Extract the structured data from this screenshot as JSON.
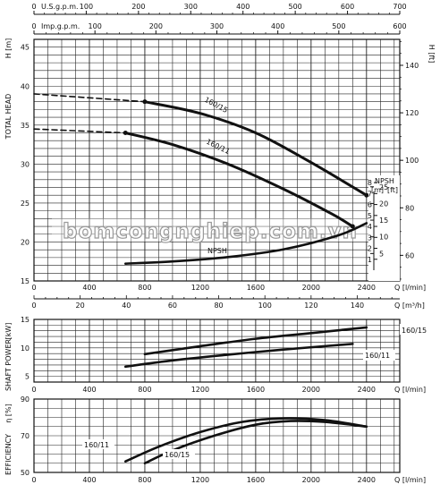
{
  "watermark": "bomcongnghiep.com.vn",
  "chart_data": [
    {
      "type": "line",
      "name": "head",
      "top_axes": [
        {
          "label": "U.S.g.p.m.",
          "ticks": [
            "0",
            "100",
            "200",
            "300",
            "400",
            "500",
            "600",
            "700"
          ],
          "max": 700
        },
        {
          "label": "Imp.g.p.m.",
          "ticks": [
            "0",
            "100",
            "200",
            "300",
            "400",
            "500",
            "600"
          ],
          "max": 600
        }
      ],
      "x_ticks_lmin": [
        "0",
        "400",
        "800",
        "1200",
        "1600",
        "2000",
        "2400"
      ],
      "x_unit_lmin": "Q [l/min]",
      "x_ticks_m3h": [
        "0",
        "20",
        "40",
        "60",
        "80",
        "100",
        "120",
        "140"
      ],
      "x_unit_m3h": "Q [m³/h]",
      "xlim": [
        0,
        2640
      ],
      "y_ticks": [
        "15",
        "20",
        "25",
        "30",
        "35",
        "40",
        "45"
      ],
      "ylim": [
        15,
        46
      ],
      "ylabel": "TOTAL HEAD",
      "ylabel_unit": "H [m]",
      "y2_ticks": [
        "60",
        "80",
        "100",
        "120",
        "140"
      ],
      "y2_label": "H [ft]",
      "grid": true,
      "series": [
        {
          "name": "160/15",
          "dashed_x": [
            0,
            800
          ],
          "dashed_y": [
            39.0,
            38.0
          ],
          "x": [
            800,
            1200,
            1600,
            2000,
            2400
          ],
          "y": [
            38.0,
            36.5,
            34.0,
            30.2,
            26.0
          ]
        },
        {
          "name": "160/11",
          "dashed_x": [
            0,
            660
          ],
          "dashed_y": [
            34.5,
            34.0
          ],
          "x": [
            660,
            1000,
            1400,
            1800,
            2150,
            2300
          ],
          "y": [
            34.0,
            32.5,
            30.0,
            26.8,
            23.6,
            22.0
          ]
        }
      ],
      "npsh": {
        "label": "NPSH",
        "box_title": "NPSH",
        "box_units": [
          "[m]",
          "[ft]"
        ],
        "m_ticks": [
          "1",
          "2",
          "3",
          "4",
          "5",
          "6",
          "7",
          "8"
        ],
        "ft_ticks": [
          "5",
          "10",
          "15",
          "20",
          "25"
        ],
        "x": [
          660,
          1000,
          1400,
          1800,
          2200,
          2400
        ],
        "y_m": [
          0.6,
          0.8,
          1.2,
          1.9,
          3.2,
          4.3
        ]
      }
    },
    {
      "type": "line",
      "name": "power",
      "x_ticks_lmin": [
        "0",
        "400",
        "800",
        "1200",
        "1600",
        "2000",
        "2400"
      ],
      "x_unit_lmin": "Q [l/min]",
      "xlim": [
        0,
        2640
      ],
      "y_ticks": [
        "5",
        "10",
        "15"
      ],
      "ylim": [
        4,
        15
      ],
      "ylabel": "SHAFT POWER",
      "ylabel_unit": "[kW]",
      "grid": true,
      "series": [
        {
          "name": "160/15",
          "x": [
            800,
            1200,
            1600,
            2000,
            2400
          ],
          "y": [
            8.9,
            10.3,
            11.6,
            12.6,
            13.6
          ]
        },
        {
          "name": "160/11",
          "x": [
            660,
            1000,
            1400,
            1800,
            2300
          ],
          "y": [
            6.7,
            7.8,
            8.8,
            9.7,
            10.7
          ]
        }
      ]
    },
    {
      "type": "line",
      "name": "efficiency",
      "x_ticks_lmin": [
        "0",
        "400",
        "800",
        "1200",
        "1600",
        "2000",
        "2400"
      ],
      "x_unit_lmin": "Q [l/min]",
      "xlim": [
        0,
        2640
      ],
      "y_ticks": [
        "50",
        "70",
        "90"
      ],
      "ylim": [
        50,
        90
      ],
      "ylabel": "EFFICIENCY",
      "ylabel_unit": "η [%]",
      "grid": true,
      "series": [
        {
          "name": "160/11",
          "x": [
            660,
            900,
            1200,
            1500,
            1800,
            2100,
            2400
          ],
          "y": [
            56,
            64,
            72,
            77.5,
            79.5,
            78.5,
            75
          ]
        },
        {
          "name": "160/15",
          "x": [
            800,
            1000,
            1300,
            1600,
            1850,
            2100,
            2400
          ],
          "y": [
            55,
            62,
            70,
            76,
            78,
            77.5,
            75
          ]
        }
      ]
    }
  ]
}
